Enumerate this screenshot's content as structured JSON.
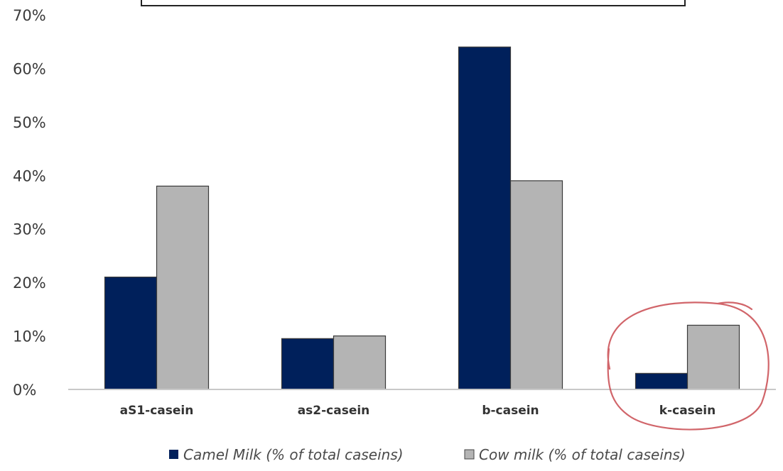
{
  "chart_data": {
    "type": "bar",
    "categories": [
      "aS1-casein",
      "as2-casein",
      "b-casein",
      "k-casein"
    ],
    "series": [
      {
        "name": "Camel Milk (% of total caseins)",
        "values": [
          21,
          9.5,
          64,
          3
        ],
        "color": "#00205b"
      },
      {
        "name": "Cow milk (% of total caseins)",
        "values": [
          38,
          10,
          39,
          12
        ],
        "color": "#b4b4b4"
      }
    ],
    "ylim": [
      0,
      70
    ],
    "y_ticks": [
      "0%",
      "10%",
      "20%",
      "30%",
      "40%",
      "50%",
      "60%",
      "70%"
    ],
    "grid": false,
    "legend_position": "bottom",
    "highlight": {
      "category": "k-casein",
      "style": "red hand-drawn circle"
    }
  }
}
